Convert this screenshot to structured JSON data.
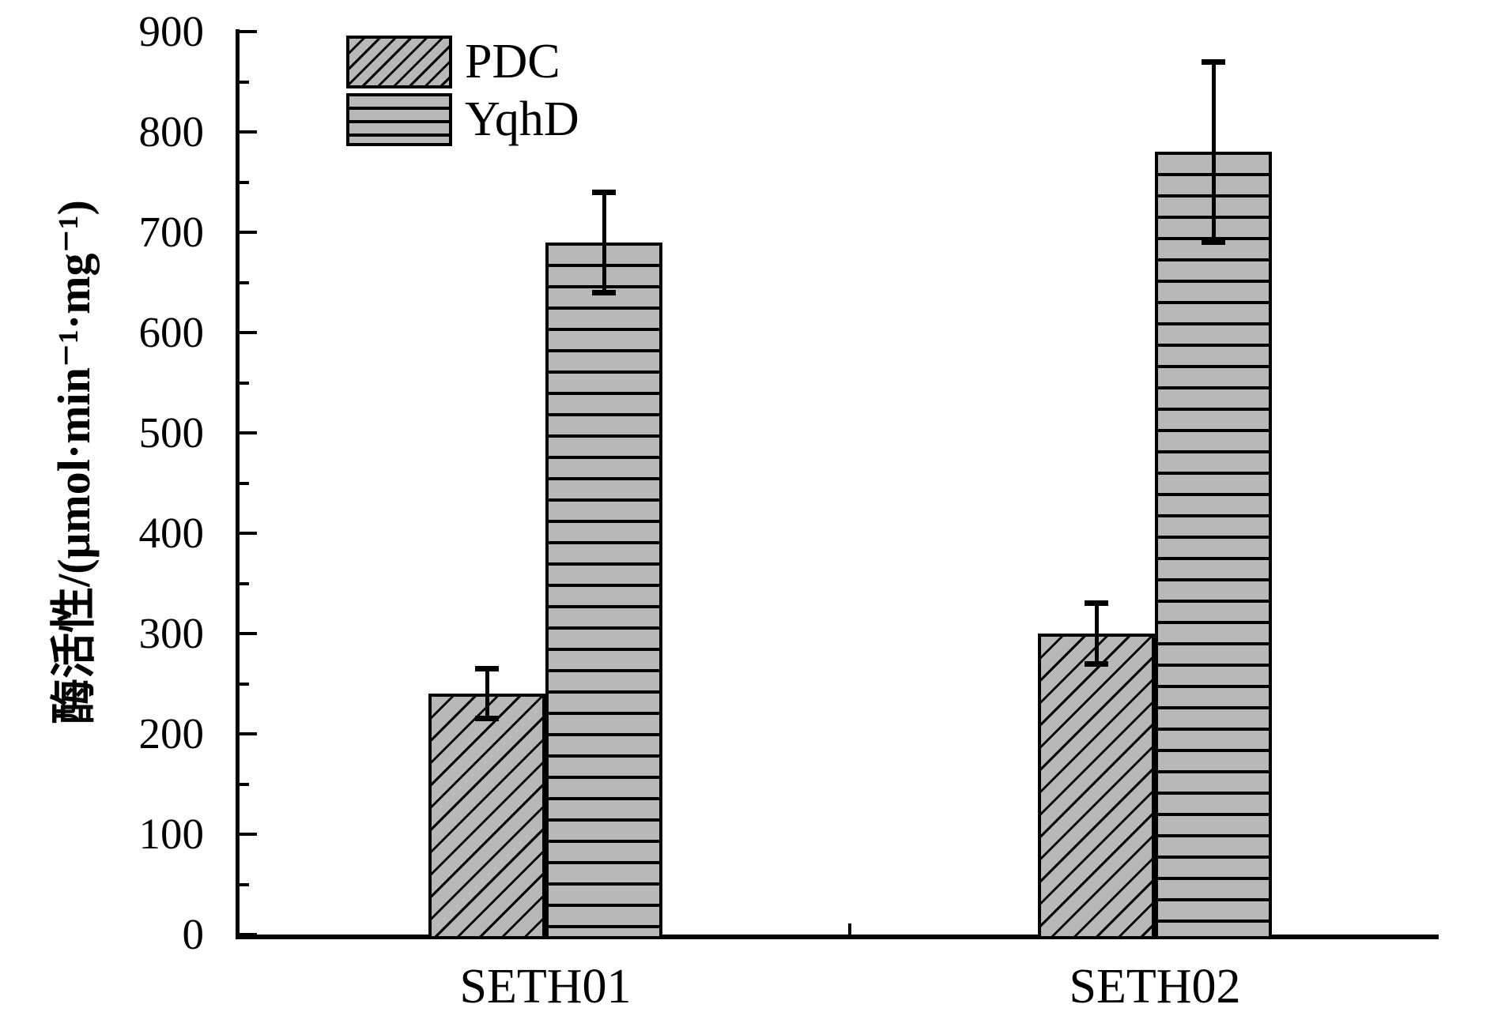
{
  "chart_data": {
    "type": "bar",
    "title": "",
    "categories": [
      "SETH01",
      "SETH02"
    ],
    "series": [
      {
        "name": "PDC",
        "hatch": "diagonal",
        "values": [
          240,
          300
        ],
        "errors": [
          25,
          30
        ]
      },
      {
        "name": "YqhD",
        "hatch": "horizontal",
        "values": [
          690,
          780
        ],
        "errors": [
          50,
          90
        ]
      }
    ],
    "xlabel": "",
    "ylabel": "酶活性/(μmol·min⁻¹·mg⁻¹)",
    "ylim": [
      0,
      900
    ],
    "y_major_step": 100,
    "y_minor_step": 50,
    "y_tick_labels": [
      "0",
      "100",
      "200",
      "300",
      "400",
      "500",
      "600",
      "700",
      "800",
      "900"
    ],
    "grid": false,
    "legend_position": "top-left-inside",
    "error_bars": true,
    "bar_fill_color": "#b8b8b8",
    "line_color": "#000000",
    "background_color": "#ffffff"
  }
}
